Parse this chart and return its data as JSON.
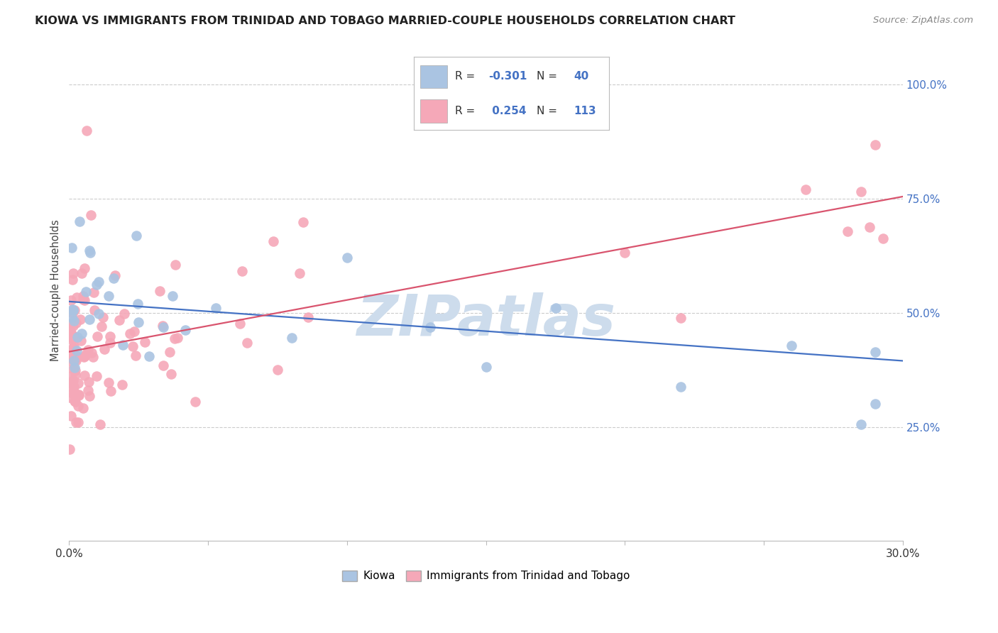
{
  "title": "KIOWA VS IMMIGRANTS FROM TRINIDAD AND TOBAGO MARRIED-COUPLE HOUSEHOLDS CORRELATION CHART",
  "source": "Source: ZipAtlas.com",
  "ylabel": "Married-couple Households",
  "xlim": [
    0.0,
    0.3
  ],
  "ylim": [
    0.0,
    1.1
  ],
  "kiowa_color": "#aac4e2",
  "tt_color": "#f5a8b8",
  "kiowa_line_color": "#4472c4",
  "tt_line_color": "#d9546e",
  "watermark": "ZIPatlas",
  "watermark_color": "#cddcec",
  "bottom_legend_kiowa": "Kiowa",
  "bottom_legend_tt": "Immigrants from Trinidad and Tobago",
  "kiowa_R": -0.301,
  "kiowa_N": 40,
  "tt_R": 0.254,
  "tt_N": 113,
  "kiowa_line_x0": 0.0,
  "kiowa_line_y0": 0.525,
  "kiowa_line_x1": 0.3,
  "kiowa_line_y1": 0.395,
  "tt_line_x0": 0.0,
  "tt_line_y0": 0.415,
  "tt_line_x1": 0.3,
  "tt_line_y1": 0.755,
  "grid_color": "#cccccc",
  "spine_color": "#bbbbbb",
  "yticks": [
    0.25,
    0.5,
    0.75,
    1.0
  ],
  "ytick_labels": [
    "25.0%",
    "50.0%",
    "75.0%",
    "100.0%"
  ],
  "xtick_start_label": "0.0%",
  "xtick_end_label": "30.0%"
}
